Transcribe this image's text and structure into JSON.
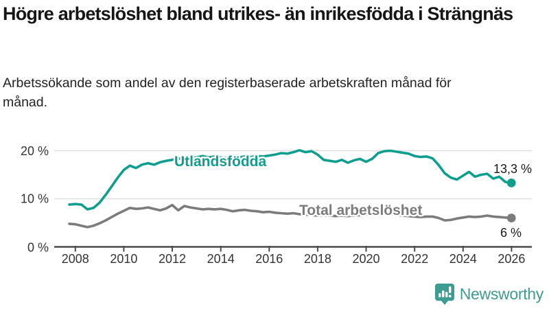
{
  "header": {
    "title": "Högre arbetslöshet bland utrikes- än inrikesfödda i Strängnäs",
    "subtitle": "Arbetssökande som andel av den registerbaserade arbetskraften månad för månad."
  },
  "chart_data": {
    "type": "line",
    "title": "Högre arbetslöshet bland utrikes- än inrikesfödda i Strängnäs",
    "x_start": 2007.75,
    "x_step": 0.25,
    "x_tick_labels": [
      "2008",
      "2010",
      "2012",
      "2014",
      "2016",
      "2018",
      "2020",
      "2022",
      "2024",
      "2026"
    ],
    "y_tick_labels": [
      "20 %",
      "10 %",
      "0 %"
    ],
    "ylabel": "",
    "xlabel": "",
    "ylim": [
      0,
      21
    ],
    "grid": "horizontal",
    "legend_position": "inline-labels",
    "series": [
      {
        "name": "Utlandsfödda",
        "color": "#0f9e8e",
        "end_label": "13,3 %",
        "end_value": 13.3,
        "values": [
          8.8,
          8.9,
          8.8,
          7.8,
          8.1,
          9.2,
          10.8,
          12.6,
          14.4,
          16.0,
          16.9,
          16.4,
          17.1,
          17.4,
          17.1,
          17.6,
          17.9,
          18.1,
          18.4,
          18.2,
          18.5,
          18.6,
          18.9,
          18.6,
          18.8,
          18.6,
          18.5,
          18.7,
          18.6,
          18.8,
          18.7,
          18.9,
          18.8,
          19.0,
          19.2,
          19.5,
          19.4,
          19.7,
          20.1,
          19.7,
          19.9,
          19.2,
          18.1,
          17.9,
          17.7,
          18.1,
          17.5,
          18.0,
          18.3,
          17.7,
          18.3,
          19.5,
          19.9,
          20.0,
          19.8,
          19.6,
          19.4,
          18.9,
          18.7,
          18.8,
          18.4,
          17.0,
          15.3,
          14.4,
          14.0,
          14.8,
          15.6,
          14.6,
          15.0,
          15.2,
          14.2,
          14.6,
          13.5,
          13.3
        ]
      },
      {
        "name": "Total arbetslöshet",
        "color": "#7b7b7b",
        "end_label": "6 %",
        "end_value": 6.0,
        "values": [
          4.8,
          4.7,
          4.4,
          4.1,
          4.4,
          4.9,
          5.5,
          6.2,
          6.9,
          7.5,
          8.1,
          7.9,
          8.0,
          8.2,
          7.9,
          7.6,
          8.0,
          8.7,
          7.6,
          8.5,
          8.2,
          8.0,
          7.8,
          7.9,
          7.8,
          7.9,
          7.7,
          7.4,
          7.6,
          7.7,
          7.5,
          7.4,
          7.2,
          7.3,
          7.1,
          7.0,
          6.9,
          7.0,
          6.8,
          6.7,
          6.6,
          6.5,
          6.6,
          6.5,
          6.4,
          6.5,
          6.4,
          6.5,
          6.6,
          6.7,
          7.0,
          7.1,
          7.0,
          6.9,
          6.7,
          6.5,
          6.4,
          6.3,
          6.2,
          6.3,
          6.3,
          6.0,
          5.5,
          5.6,
          5.9,
          6.1,
          6.3,
          6.2,
          6.3,
          6.5,
          6.3,
          6.2,
          6.1,
          6.0
        ]
      }
    ]
  },
  "footer": {
    "brand": "Newsworthy",
    "brand_color": "#3d9c90"
  }
}
